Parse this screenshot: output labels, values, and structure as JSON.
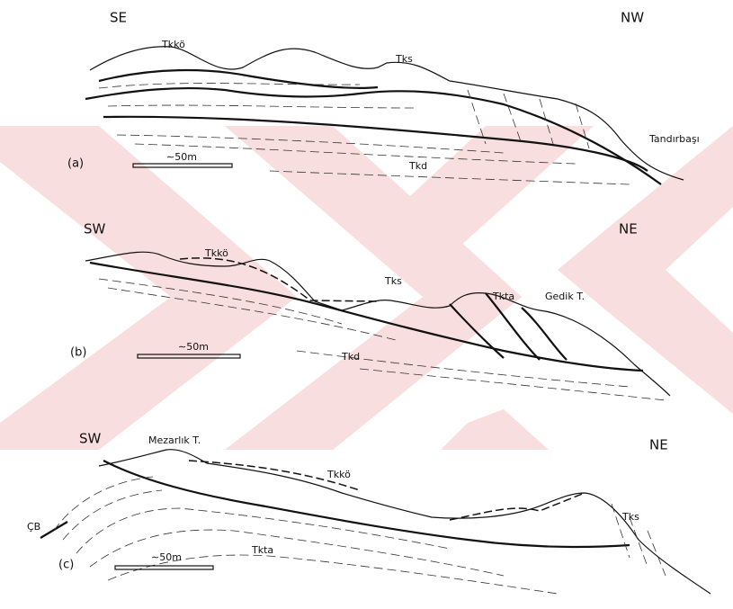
{
  "sections": [
    {
      "label": "(a)",
      "left": "SE",
      "right": "NW",
      "scale": "∼50m",
      "units": [
        "Tkkö",
        "Tks",
        "Tkd"
      ],
      "places": [
        "Tandırbaşı"
      ]
    },
    {
      "label": "(b)",
      "left": "SW",
      "right": "NE",
      "scale": "∼50m",
      "units": [
        "Tkkö",
        "Tks",
        "Tkta",
        "Tkd"
      ],
      "places": [
        "Gedik T."
      ]
    },
    {
      "label": "(c)",
      "left": "SW",
      "right": "NE",
      "scale": "∼50m",
      "units": [
        "Tkkö",
        "Tks",
        "Tkta",
        "ÇB"
      ],
      "places": [
        "Mezarlık T."
      ]
    }
  ]
}
